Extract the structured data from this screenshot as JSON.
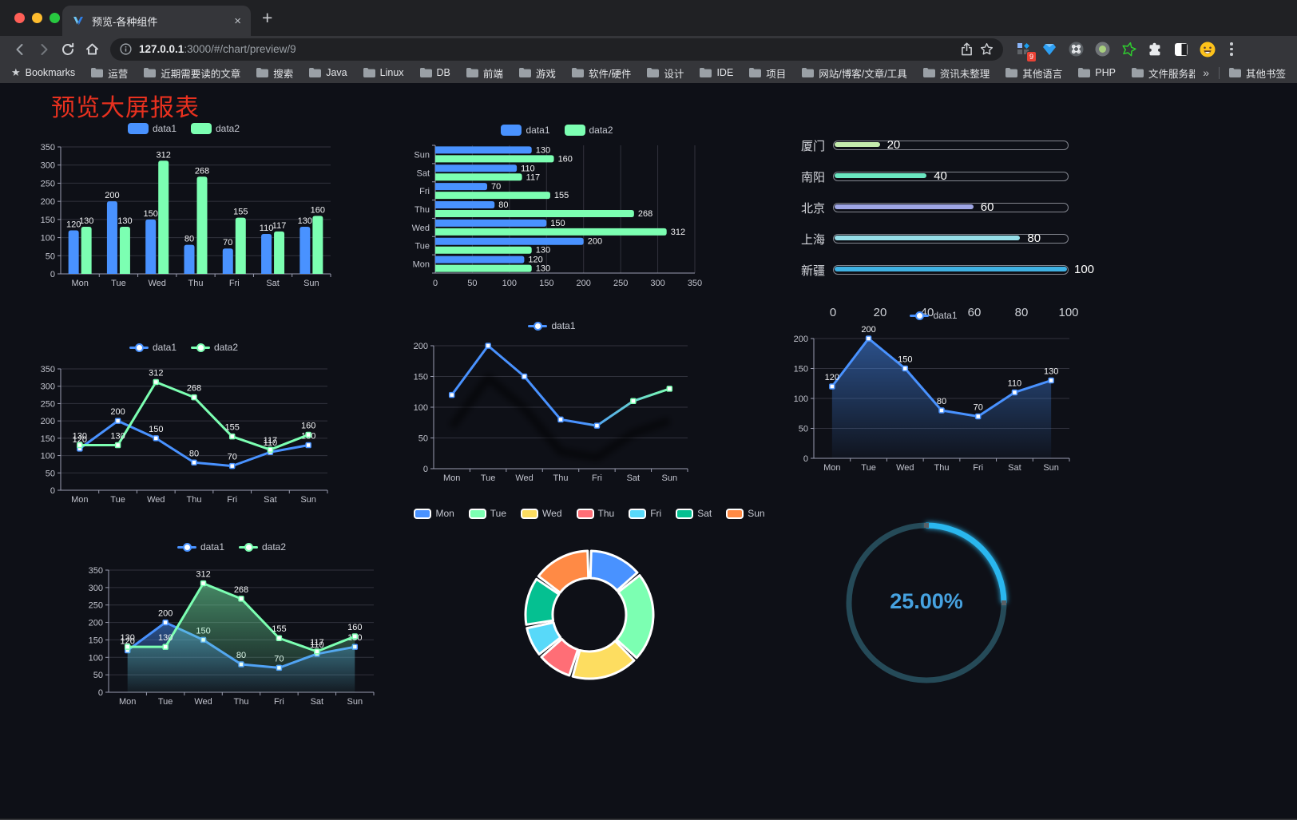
{
  "browser": {
    "tab_title": "预览-各种组件",
    "new_tab_label": "+",
    "url_host": "127.0.0.1",
    "url_rest": ":3000/#/chart/preview/9",
    "bookmarks_label": "Bookmarks",
    "bookmark_items": [
      "运营",
      "近期需要读的文章",
      "搜索",
      "Java",
      "Linux",
      "DB",
      "前端",
      "游戏",
      "软件/硬件",
      "设计",
      "IDE",
      "项目",
      "网站/博客/文章/工具",
      "资讯未整理",
      "其他语言",
      "PHP",
      "文件服务器"
    ],
    "overflow_label": "»",
    "other_bookmarks_label": "其他书签",
    "extension_badge": "9",
    "traffic_colors": [
      "#ff5f57",
      "#febc2e",
      "#28c840"
    ]
  },
  "page": {
    "title": "预览大屏报表",
    "title_color": "#e8311f",
    "background": "#0e1017"
  },
  "chart_data": [
    {
      "id": "bar-vertical",
      "type": "bar",
      "legend_style": "bar",
      "categories": [
        "Mon",
        "Tue",
        "Wed",
        "Thu",
        "Fri",
        "Sat",
        "Sun"
      ],
      "series": [
        {
          "name": "data1",
          "color": "#4992ff",
          "values": [
            120,
            200,
            150,
            80,
            70,
            110,
            130
          ]
        },
        {
          "name": "data2",
          "color": "#7cffb2",
          "values": [
            130,
            130,
            312,
            268,
            155,
            117,
            160
          ]
        }
      ],
      "ylim": [
        0,
        350
      ],
      "ytick": 50,
      "show_labels": true
    },
    {
      "id": "bar-horizontal",
      "type": "bar_h",
      "legend_style": "bar",
      "categories": [
        "Mon",
        "Tue",
        "Wed",
        "Thu",
        "Fri",
        "Sat",
        "Sun"
      ],
      "display_order_top_to_bottom": [
        "Sun",
        "Sat",
        "Fri",
        "Thu",
        "Wed",
        "Tue",
        "Mon"
      ],
      "series": [
        {
          "name": "data1",
          "color": "#4992ff",
          "values": [
            120,
            200,
            150,
            80,
            70,
            110,
            130
          ]
        },
        {
          "name": "data2",
          "color": "#7cffb2",
          "values": [
            130,
            130,
            312,
            268,
            155,
            117,
            160
          ]
        }
      ],
      "xlim": [
        0,
        350
      ],
      "xtick": 50,
      "show_labels": true
    },
    {
      "id": "progress",
      "type": "progress_bars",
      "rows": [
        {
          "label": "厦门",
          "value": 20,
          "color": "#c4ebad"
        },
        {
          "label": "南阳",
          "value": 40,
          "color": "#6be6c1"
        },
        {
          "label": "北京",
          "value": 60,
          "color": "#a0a7e6"
        },
        {
          "label": "上海",
          "value": 80,
          "color": "#96dee8"
        },
        {
          "label": "新疆",
          "value": 100,
          "color": "#3fb1e3"
        }
      ],
      "xlim": [
        0,
        100
      ],
      "xticks": [
        0,
        20,
        40,
        60,
        80,
        100
      ]
    },
    {
      "id": "line-dual",
      "type": "line",
      "legend_style": "line",
      "categories": [
        "Mon",
        "Tue",
        "Wed",
        "Thu",
        "Fri",
        "Sat",
        "Sun"
      ],
      "series": [
        {
          "name": "data1",
          "color": "#4992ff",
          "values": [
            120,
            200,
            150,
            80,
            70,
            110,
            130
          ]
        },
        {
          "name": "data2",
          "color": "#7cffb2",
          "values": [
            130,
            130,
            312,
            268,
            155,
            117,
            160
          ]
        }
      ],
      "ylim": [
        0,
        350
      ],
      "ytick": 50,
      "show_labels": true
    },
    {
      "id": "line-gradient",
      "type": "line",
      "legend_style": "line",
      "shadow": true,
      "categories": [
        "Mon",
        "Tue",
        "Wed",
        "Thu",
        "Fri",
        "Sat",
        "Sun"
      ],
      "series": [
        {
          "name": "data1",
          "color": "#4992ff",
          "color_end": "#7cffb2",
          "values": [
            120,
            200,
            150,
            80,
            70,
            110,
            130
          ]
        }
      ],
      "ylim": [
        0,
        200
      ],
      "ytick": 50,
      "show_labels": false
    },
    {
      "id": "area-single",
      "type": "line",
      "legend_style": "line",
      "categories": [
        "Mon",
        "Tue",
        "Wed",
        "Thu",
        "Fri",
        "Sat",
        "Sun"
      ],
      "series": [
        {
          "name": "data1",
          "color": "#4992ff",
          "area": true,
          "values": [
            120,
            200,
            150,
            80,
            70,
            110,
            130
          ]
        }
      ],
      "ylim": [
        0,
        200
      ],
      "ytick": 50,
      "show_labels": true
    },
    {
      "id": "area-dual",
      "type": "line",
      "legend_style": "line",
      "categories": [
        "Mon",
        "Tue",
        "Wed",
        "Thu",
        "Fri",
        "Sat",
        "Sun"
      ],
      "series": [
        {
          "name": "data1",
          "color": "#4992ff",
          "area": true,
          "values": [
            120,
            200,
            150,
            80,
            70,
            110,
            130
          ]
        },
        {
          "name": "data2",
          "color": "#7cffb2",
          "area": true,
          "values": [
            130,
            130,
            312,
            268,
            155,
            117,
            160
          ]
        }
      ],
      "ylim": [
        0,
        350
      ],
      "ytick": 50,
      "show_labels": true
    },
    {
      "id": "donut",
      "type": "pie",
      "legend_style": "pie",
      "items": [
        {
          "label": "Mon",
          "value": 120,
          "color": "#4992ff"
        },
        {
          "label": "Tue",
          "value": 200,
          "color": "#7cffb2"
        },
        {
          "label": "Wed",
          "value": 150,
          "color": "#fddd60"
        },
        {
          "label": "Thu",
          "value": 80,
          "color": "#ff6e76"
        },
        {
          "label": "Fri",
          "value": 70,
          "color": "#58d9f9"
        },
        {
          "label": "Sat",
          "value": 110,
          "color": "#05c091"
        },
        {
          "label": "Sun",
          "value": 130,
          "color": "#ff8a45"
        }
      ],
      "inner_radius_ratio": 0.58
    },
    {
      "id": "gauge",
      "type": "gauge",
      "value": 25,
      "display": "25.00%",
      "color": "#29b7ef",
      "track_color": "#254a58",
      "text_color": "#46a2e0"
    }
  ]
}
